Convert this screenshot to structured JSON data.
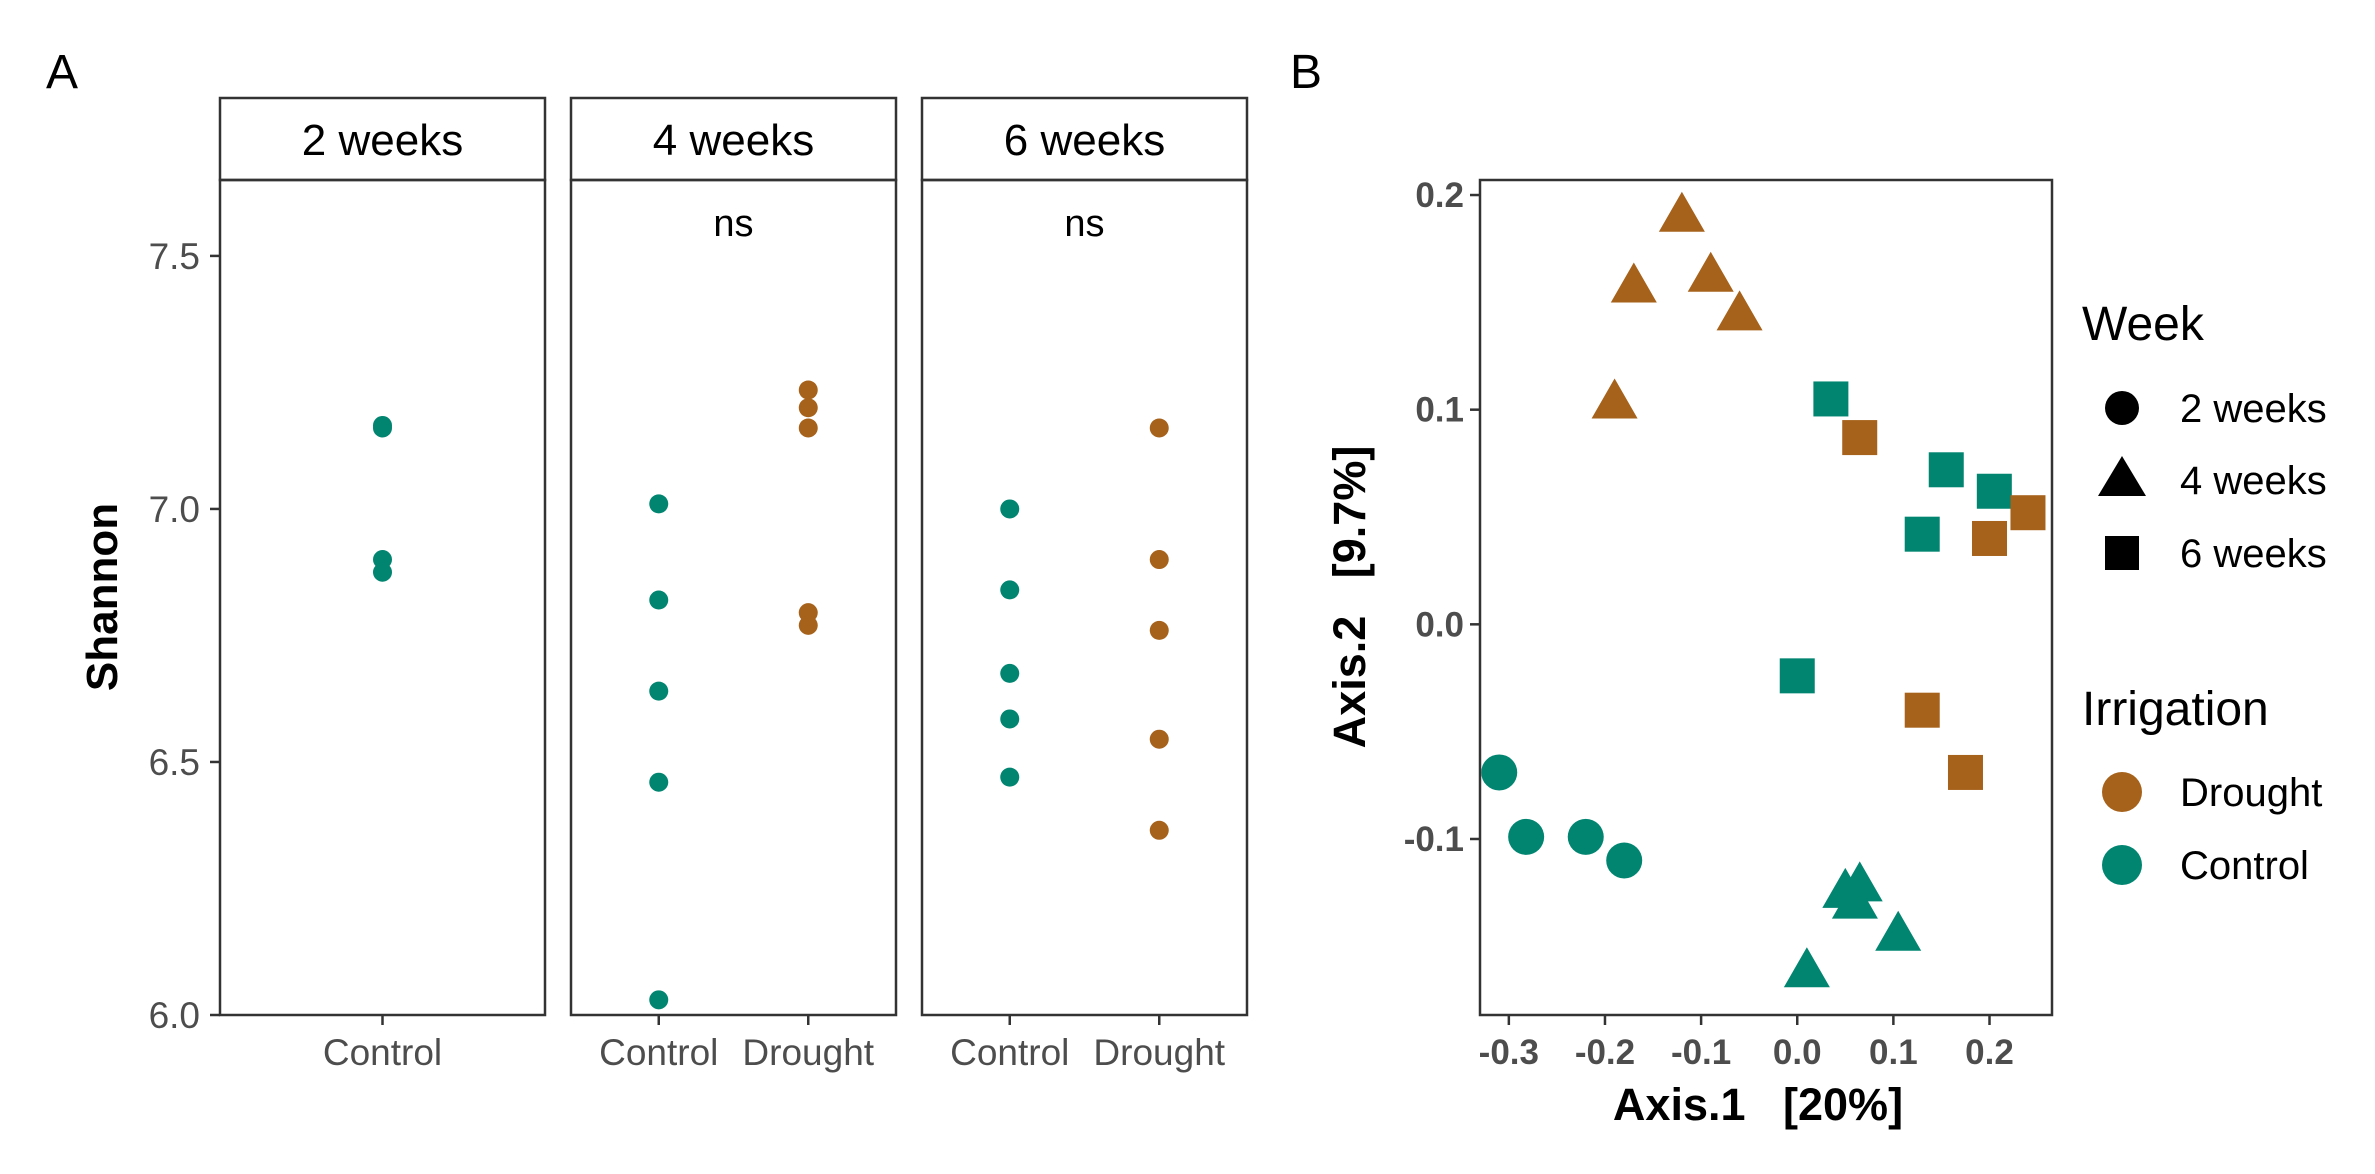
{
  "colors": {
    "Drought": "#A6611A",
    "Control": "#018571"
  },
  "panelA": {
    "letter": "A",
    "ylabel": "Shannon",
    "ylim": [
      6.0,
      7.65
    ],
    "yticks": [
      6.0,
      6.5,
      7.0,
      7.5
    ],
    "ytick_labels": [
      "6.0",
      "6.5",
      "7.0",
      "7.5"
    ]
  },
  "panelB": {
    "letter": "B",
    "xlabel": "Axis.1   [20%]",
    "ylabel": "Axis.2   [9.7%]",
    "xlim": [
      -0.33,
      0.265
    ],
    "ylim": [
      -0.182,
      0.207
    ],
    "xticks": [
      -0.3,
      -0.2,
      -0.1,
      0.0,
      0.1,
      0.2
    ],
    "xtick_labels": [
      "-0.3",
      "-0.2",
      "-0.1",
      "0.0",
      "0.1",
      "0.2"
    ],
    "yticks": [
      -0.1,
      0.0,
      0.1,
      0.2
    ],
    "ytick_labels": [
      "-0.1",
      "0.0",
      "0.1",
      "0.2"
    ]
  },
  "legend": {
    "week_title": "Week",
    "week_items": [
      {
        "label": "2 weeks",
        "shape": "circle"
      },
      {
        "label": "4 weeks",
        "shape": "triangle"
      },
      {
        "label": "6 weeks",
        "shape": "square"
      }
    ],
    "irrigation_title": "Irrigation",
    "irrigation_items": [
      {
        "label": "Drought",
        "color": "#A6611A"
      },
      {
        "label": "Control",
        "color": "#018571"
      }
    ]
  },
  "chart_data": [
    {
      "type": "scatter",
      "ylabel": "Shannon",
      "ylim": [
        6.0,
        7.65
      ],
      "facets": [
        {
          "strip": "2 weeks",
          "annotation": "",
          "categories": [
            "Control"
          ],
          "series": [
            {
              "name": "Control",
              "values": [
                7.165,
                7.16,
                6.9,
                6.875
              ]
            }
          ]
        },
        {
          "strip": "4 weeks",
          "annotation": "ns",
          "categories": [
            "Control",
            "Drought"
          ],
          "series": [
            {
              "name": "Control",
              "values": [
                7.01,
                6.82,
                6.64,
                6.46,
                6.03
              ]
            },
            {
              "name": "Drought",
              "values": [
                7.235,
                7.2,
                7.16,
                6.795,
                6.77
              ]
            }
          ]
        },
        {
          "strip": "6 weeks",
          "annotation": "ns",
          "categories": [
            "Control",
            "Drought"
          ],
          "series": [
            {
              "name": "Control",
              "values": [
                7.0,
                6.84,
                6.675,
                6.585,
                6.47
              ]
            },
            {
              "name": "Drought",
              "values": [
                7.16,
                6.9,
                6.76,
                6.545,
                6.365
              ]
            }
          ]
        }
      ]
    },
    {
      "type": "scatter",
      "xlabel": "Axis.1   [20%]",
      "ylabel": "Axis.2   [9.7%]",
      "xlim": [
        -0.33,
        0.265
      ],
      "ylim": [
        -0.182,
        0.207
      ],
      "points": [
        {
          "x": -0.31,
          "y": -0.069,
          "week": "2 weeks",
          "irrigation": "Control"
        },
        {
          "x": -0.282,
          "y": -0.099,
          "week": "2 weeks",
          "irrigation": "Control"
        },
        {
          "x": -0.22,
          "y": -0.099,
          "week": "2 weeks",
          "irrigation": "Control"
        },
        {
          "x": -0.18,
          "y": -0.11,
          "week": "2 weeks",
          "irrigation": "Control"
        },
        {
          "x": -0.12,
          "y": 0.19,
          "week": "4 weeks",
          "irrigation": "Drought"
        },
        {
          "x": -0.17,
          "y": 0.157,
          "week": "4 weeks",
          "irrigation": "Drought"
        },
        {
          "x": -0.09,
          "y": 0.162,
          "week": "4 weeks",
          "irrigation": "Drought"
        },
        {
          "x": -0.06,
          "y": 0.144,
          "week": "4 weeks",
          "irrigation": "Drought"
        },
        {
          "x": -0.19,
          "y": 0.103,
          "week": "4 weeks",
          "irrigation": "Drought"
        },
        {
          "x": 0.035,
          "y": 0.105,
          "week": "6 weeks",
          "irrigation": "Control"
        },
        {
          "x": 0.155,
          "y": 0.072,
          "week": "6 weeks",
          "irrigation": "Control"
        },
        {
          "x": 0.205,
          "y": 0.062,
          "week": "6 weeks",
          "irrigation": "Control"
        },
        {
          "x": 0.13,
          "y": 0.042,
          "week": "6 weeks",
          "irrigation": "Control"
        },
        {
          "x": 0.0,
          "y": -0.024,
          "week": "6 weeks",
          "irrigation": "Control"
        },
        {
          "x": 0.065,
          "y": 0.087,
          "week": "6 weeks",
          "irrigation": "Drought"
        },
        {
          "x": 0.2,
          "y": 0.04,
          "week": "6 weeks",
          "irrigation": "Drought"
        },
        {
          "x": 0.24,
          "y": 0.052,
          "week": "6 weeks",
          "irrigation": "Drought"
        },
        {
          "x": 0.13,
          "y": -0.04,
          "week": "6 weeks",
          "irrigation": "Drought"
        },
        {
          "x": 0.175,
          "y": -0.069,
          "week": "6 weeks",
          "irrigation": "Drought"
        },
        {
          "x": 0.05,
          "y": -0.125,
          "week": "4 weeks",
          "irrigation": "Control"
        },
        {
          "x": 0.065,
          "y": -0.122,
          "week": "4 weeks",
          "irrigation": "Control"
        },
        {
          "x": 0.06,
          "y": -0.13,
          "week": "4 weeks",
          "irrigation": "Control"
        },
        {
          "x": 0.105,
          "y": -0.145,
          "week": "4 weeks",
          "irrigation": "Control"
        },
        {
          "x": 0.01,
          "y": -0.162,
          "week": "4 weeks",
          "irrigation": "Control"
        }
      ]
    }
  ]
}
